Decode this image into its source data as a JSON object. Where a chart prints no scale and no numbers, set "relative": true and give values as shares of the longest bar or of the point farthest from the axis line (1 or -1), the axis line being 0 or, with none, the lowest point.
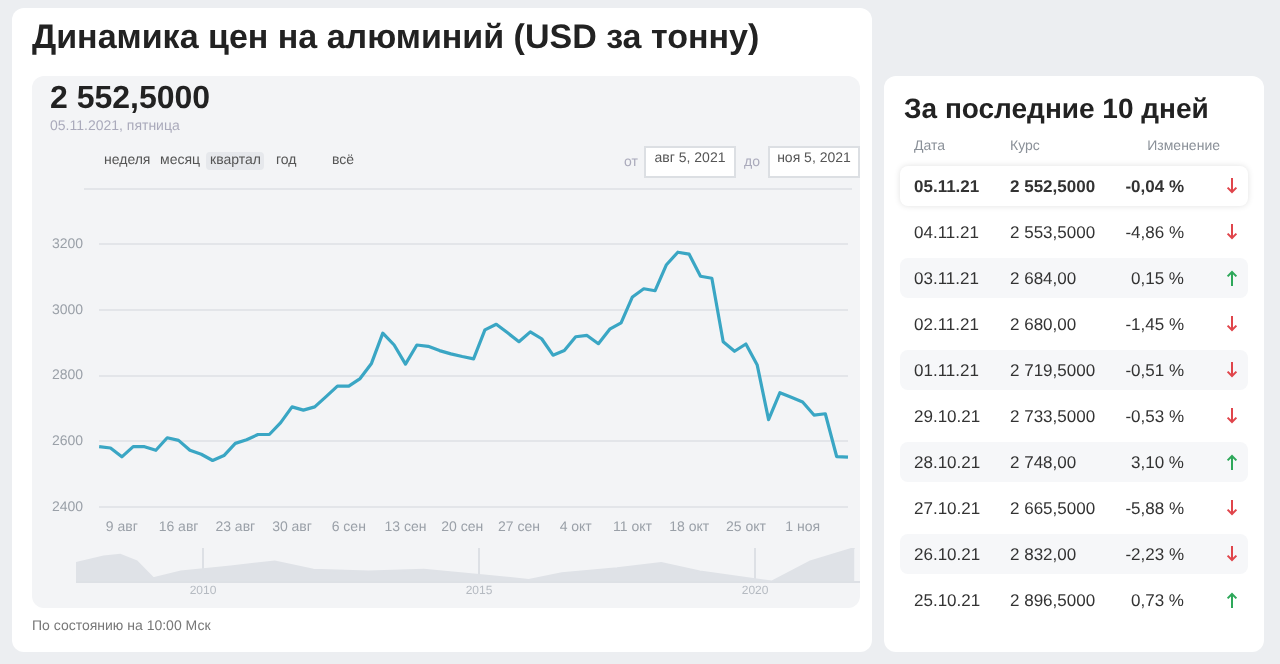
{
  "chart_data": [
    {
      "type": "line",
      "title": "Динамика цен на алюминий (USD за тонну)",
      "subtitle": "2 552,5000",
      "annotations": [
        "05.11.2021, пятница",
        "неделя",
        "месяц",
        "квартал",
        "год",
        "всё",
        "от",
        "авг 5, 2021",
        "до",
        "ноя 5, 2021",
        "По состоянию на 10:00 Мск"
      ],
      "categories": [
        null,
        null,
        "9 авг",
        null,
        null,
        null,
        null,
        "16 авг",
        null,
        null,
        null,
        null,
        "23 авг",
        null,
        null,
        null,
        null,
        "30 авг",
        null,
        null,
        null,
        null,
        "6 сен",
        null,
        null,
        null,
        null,
        "13 сен",
        null,
        null,
        null,
        null,
        "20 сен",
        null,
        null,
        null,
        null,
        "27 сен",
        null,
        null,
        null,
        null,
        "4 окт",
        null,
        null,
        null,
        null,
        "11 окт",
        null,
        null,
        null,
        null,
        "18 окт",
        null,
        null,
        null,
        null,
        "25 окт",
        null,
        null,
        null,
        null,
        "1 ноя",
        null,
        null,
        null,
        null
      ],
      "values": [
        2584,
        2580,
        2553,
        2584,
        2584,
        2573,
        2611,
        2603,
        2573,
        2561,
        2542,
        2557,
        2594,
        2605,
        2621,
        2621,
        2657,
        2705,
        2695,
        2705,
        2736,
        2768,
        2768,
        2791,
        2837,
        2929,
        2893,
        2835,
        2893,
        2889,
        2876,
        2866,
        2858,
        2851,
        2939,
        2956,
        2930,
        2903,
        2933,
        2912,
        2862,
        2876,
        2918,
        2922,
        2897,
        2941,
        2960,
        3039,
        3064,
        3058,
        3137,
        3175,
        3169,
        3102,
        3096,
        2903,
        2874,
        2896,
        2832,
        2666,
        2748,
        2734,
        2720,
        2680,
        2684,
        2554,
        2552
      ],
      "color": "#3aa6c4",
      "ylim": [
        2400,
        3200
      ],
      "yticks": [
        2400,
        2600,
        2800,
        3000,
        3200
      ],
      "grid": "y"
    },
    {
      "type": "other",
      "title": "За последние 10 дней",
      "annotations": [
        "Дата",
        "Курс",
        "Изменение",
        "05.11.21",
        "2 552,5000",
        "-0,04 %",
        "04.11.21",
        "2 553,5000",
        "-4,86 %",
        "03.11.21",
        "2 684,00",
        "0,15 %",
        "02.11.21",
        "2 680,00",
        "-1,45 %",
        "01.11.21",
        "2 719,5000",
        "-0,51 %",
        "29.10.21",
        "2 733,5000",
        "-0,53 %",
        "28.10.21",
        "2 748,00",
        "3,10 %",
        "27.10.21",
        "2 665,5000",
        "-5,88 %",
        "26.10.21",
        "2 832,00",
        "-2,23 %",
        "25.10.21",
        "2 896,5000",
        "0,73 %"
      ]
    },
    {
      "type": "area",
      "relative": true,
      "color": "#dfe2e7",
      "x": [
        2007.7,
        2008.2,
        2008.5,
        2008.8,
        2009.1,
        2009.6,
        2010.5,
        2011.3,
        2012,
        2013,
        2014,
        2015,
        2015.9,
        2016.5,
        2017.5,
        2018.3,
        2019,
        2020.3,
        2021,
        2021.8
      ],
      "values": [
        0.55,
        0.75,
        0.8,
        0.6,
        0.1,
        0.3,
        0.45,
        0.6,
        0.35,
        0.3,
        0.35,
        0.2,
        0.05,
        0.25,
        0.4,
        0.55,
        0.3,
        0,
        0.6,
        1
      ],
      "xlim": [
        2007.7,
        2021.9
      ],
      "xticks": [
        2010,
        2015,
        2020
      ],
      "grid": "x",
      "tick_labels": "x"
    }
  ]
}
